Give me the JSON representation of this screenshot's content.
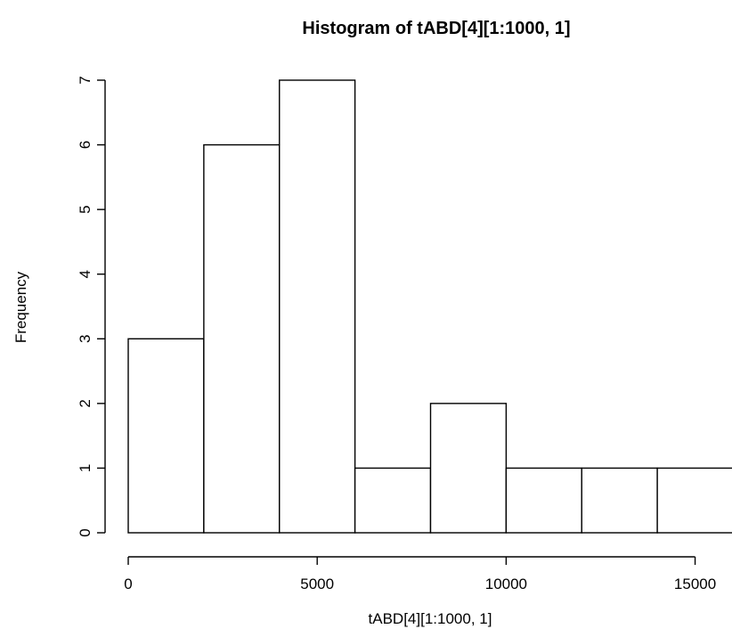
{
  "chart_data": {
    "type": "bar",
    "title": "Histogram of tABD[4][1:1000, 1]",
    "xlabel": "tABD[4][1:1000, 1]",
    "ylabel": "Frequency",
    "bins": [
      {
        "start": 0,
        "end": 2000,
        "count": 3
      },
      {
        "start": 2000,
        "end": 4000,
        "count": 6
      },
      {
        "start": 4000,
        "end": 6000,
        "count": 7
      },
      {
        "start": 6000,
        "end": 8000,
        "count": 1
      },
      {
        "start": 8000,
        "end": 10000,
        "count": 2
      },
      {
        "start": 10000,
        "end": 12000,
        "count": 1
      },
      {
        "start": 12000,
        "end": 14000,
        "count": 1
      },
      {
        "start": 14000,
        "end": 16000,
        "count": 1
      }
    ],
    "xlim": [
      0,
      16000
    ],
    "ylim": [
      0,
      7
    ],
    "x_ticks": [
      0,
      5000,
      10000,
      15000
    ],
    "x_tick_labels": [
      "0",
      "5000",
      "10000",
      "15000"
    ],
    "y_ticks": [
      0,
      1,
      2,
      3,
      4,
      5,
      6,
      7
    ],
    "y_tick_labels": [
      "0",
      "1",
      "2",
      "3",
      "4",
      "5",
      "6",
      "7"
    ],
    "grid": false,
    "legend": "none",
    "bar_fill": "#ffffff",
    "bar_stroke": "#000000"
  }
}
